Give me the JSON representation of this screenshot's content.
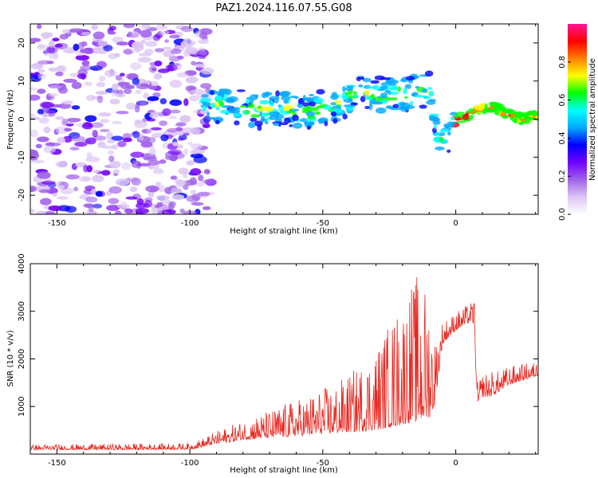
{
  "title": "PAZ1.2024.116.07.55.G08",
  "chart_data": [
    {
      "type": "heatmap",
      "xlabel": "Height of straight line (km)",
      "ylabel": "Frequency (Hz)",
      "xlim": [
        -160,
        31
      ],
      "ylim": [
        -25,
        25
      ],
      "xticks": [
        -150,
        -100,
        -50,
        0
      ],
      "yticks": [
        -20,
        -10,
        0,
        10,
        20
      ],
      "colorbar": {
        "label": "Normalized spectral amplitude",
        "range": [
          0,
          1
        ],
        "ticks": [
          0.0,
          0.2,
          0.4,
          0.6,
          0.8
        ],
        "colormap": [
          "#ffffff",
          "#dcc6f4",
          "#a061ea",
          "#7200ff",
          "#0000ff",
          "#00a8ff",
          "#00ffff",
          "#00ff00",
          "#ffff00",
          "#ff7f00",
          "#ff0000",
          "#ff1493"
        ]
      },
      "ridge": {
        "x": [
          -95,
          -85,
          -75,
          -65,
          -55,
          -45,
          -35,
          -25,
          -15,
          -10,
          -7,
          -3,
          0,
          5,
          10,
          15,
          20,
          25,
          31
        ],
        "y": [
          3,
          4,
          2,
          3,
          2,
          4,
          7,
          6,
          7,
          8,
          -4,
          -5,
          0,
          1,
          3,
          3,
          1,
          0,
          1
        ]
      }
    },
    {
      "type": "line",
      "xlabel": "Height of straight line (km)",
      "ylabel": "SNR (10 * v/v)",
      "xlim": [
        -160,
        31
      ],
      "ylim": [
        0,
        4000
      ],
      "xticks": [
        -150,
        -100,
        -50,
        0
      ],
      "yticks": [
        1000,
        2000,
        3000,
        4000
      ],
      "color": "#e8271f",
      "envelope": {
        "x": [
          -160,
          -140,
          -120,
          -100,
          -95,
          -90,
          -85,
          -80,
          -75,
          -70,
          -65,
          -60,
          -55,
          -50,
          -45,
          -40,
          -35,
          -30,
          -25,
          -20,
          -15,
          -10,
          -8,
          -5,
          -2,
          0,
          3,
          6,
          7,
          8,
          10,
          13,
          16,
          20,
          25,
          31
        ],
        "low": [
          90,
          90,
          90,
          100,
          150,
          220,
          250,
          300,
          320,
          340,
          360,
          380,
          400,
          420,
          440,
          460,
          480,
          500,
          560,
          620,
          680,
          760,
          1000,
          2300,
          2500,
          2600,
          2700,
          2800,
          2700,
          1000,
          1200,
          1200,
          1300,
          1450,
          1550,
          1650
        ],
        "high": [
          200,
          210,
          220,
          230,
          340,
          480,
          600,
          700,
          820,
          920,
          1050,
          1150,
          1250,
          1400,
          1500,
          1700,
          1950,
          2300,
          2800,
          3300,
          3800,
          3500,
          2500,
          2800,
          2900,
          3000,
          3100,
          3200,
          3300,
          1500,
          1700,
          1750,
          1750,
          1850,
          1900,
          1950
        ]
      }
    }
  ]
}
